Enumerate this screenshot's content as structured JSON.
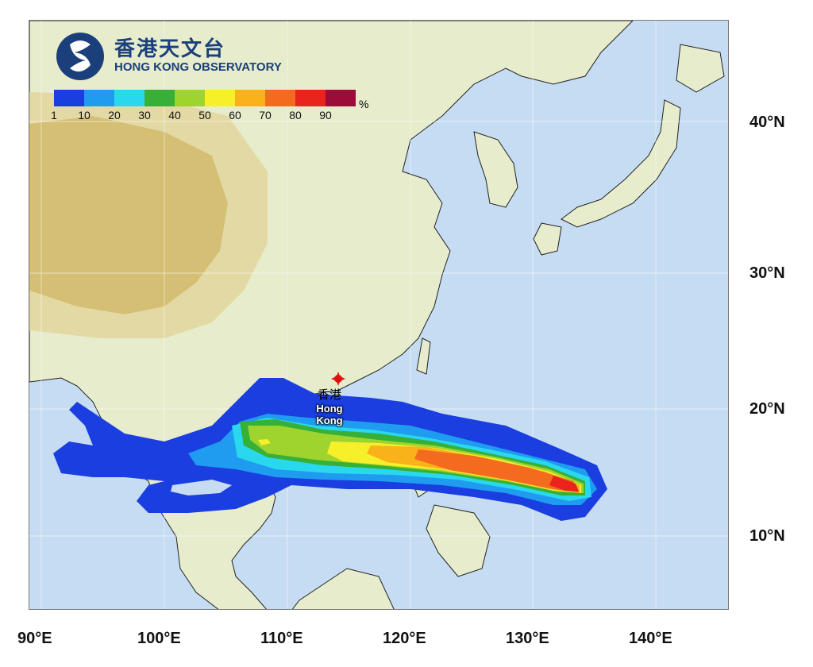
{
  "organization": {
    "name_cn": "香港天文台",
    "name_en": "HONG KONG OBSERVATORY",
    "logo_color": "#1b3f7a"
  },
  "legend": {
    "unit": "%",
    "tick_labels": [
      "1",
      "10",
      "20",
      "30",
      "40",
      "50",
      "60",
      "70",
      "80",
      "90"
    ],
    "colors": [
      "#1a3ee0",
      "#1f9cf0",
      "#2ad8ee",
      "#36b036",
      "#9fd42f",
      "#f6f02a",
      "#f9b21a",
      "#f46a1e",
      "#e8241c",
      "#9c0b3a"
    ]
  },
  "place_marker": {
    "name_cn": "香港",
    "name_en": "Hong Kong",
    "marker_color": "#e01010",
    "lon": 114.2,
    "lat": 22.3
  },
  "axes": {
    "lat_labels": [
      "40°N",
      "30°N",
      "20°N",
      "10°N"
    ],
    "lat_values": [
      40,
      30,
      20,
      10
    ],
    "lon_labels": [
      "90°E",
      "100°E",
      "110°E",
      "120°E",
      "130°E",
      "140°E"
    ],
    "lon_values": [
      90,
      100,
      110,
      120,
      130,
      140
    ],
    "lon_range": [
      89,
      146
    ],
    "lat_range": [
      5,
      46
    ]
  },
  "map_colors": {
    "ocean": "#c6dcf2",
    "lowland": "#e9efcf",
    "highland": "#d4b96b",
    "coast": "#222222"
  },
  "probability_swath": {
    "description_values_percent": [
      1,
      10,
      20,
      30,
      40,
      50,
      60,
      70,
      80
    ],
    "peak_region_lon": [
      128,
      135
    ],
    "peak_region_lat": [
      13,
      16
    ]
  }
}
